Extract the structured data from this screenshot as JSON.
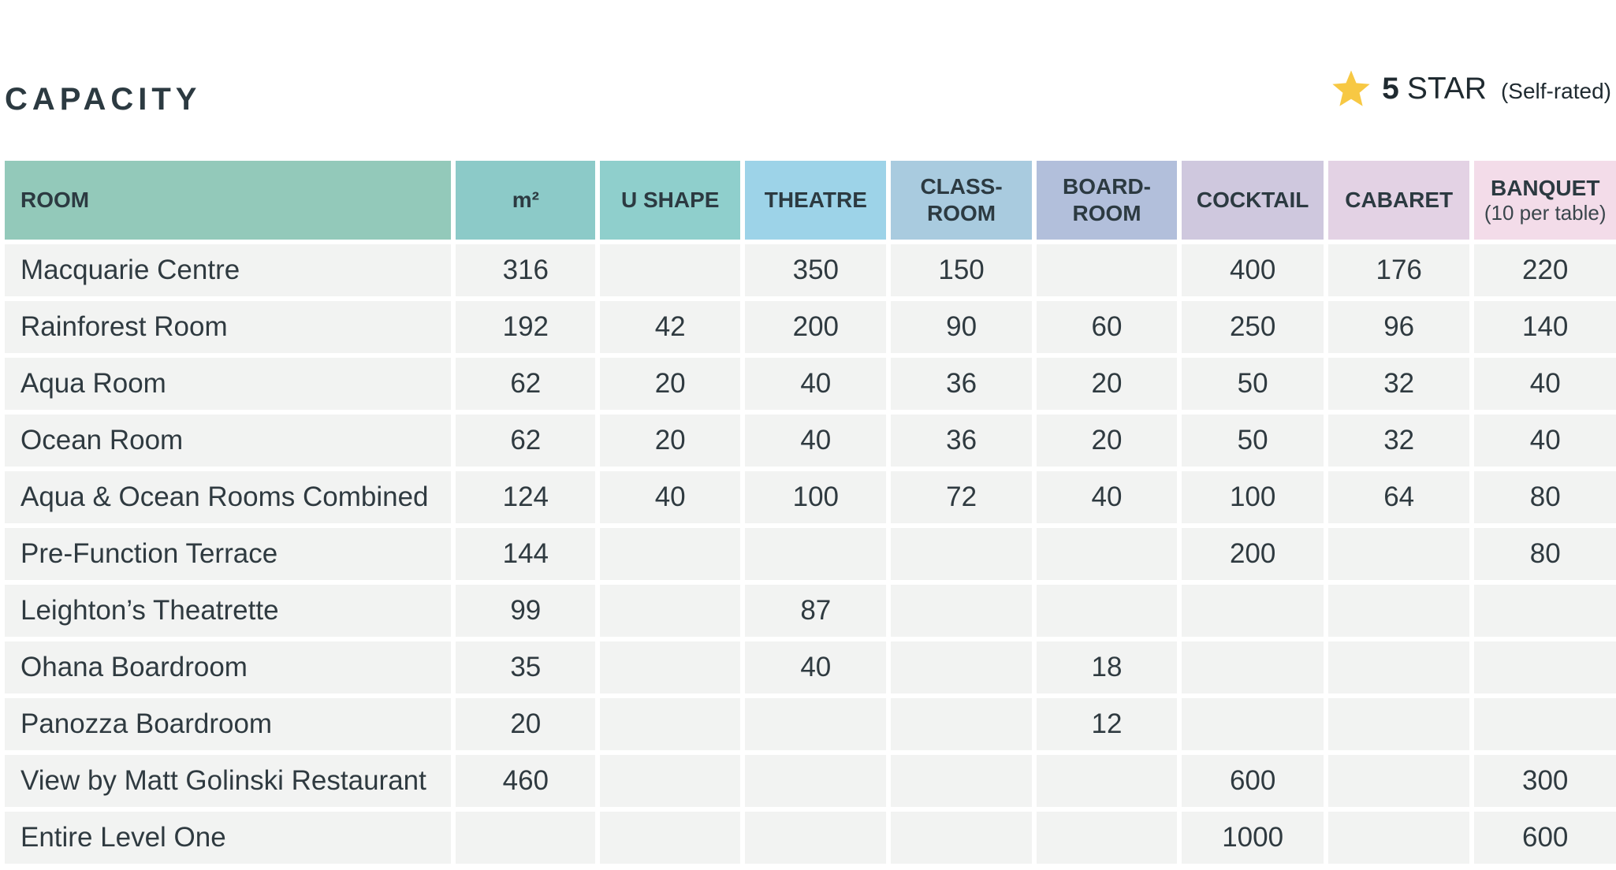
{
  "title": "CAPACITY",
  "rating": {
    "icon": "star-icon",
    "icon_color": "#f7c843",
    "stars": "5",
    "label": "STAR",
    "note": "(Self-rated)"
  },
  "columns": [
    {
      "label": "ROOM",
      "sub": "",
      "color": "#93c9ba"
    },
    {
      "label": "m²",
      "sub": "",
      "color": "#8ccac8"
    },
    {
      "label": "U SHAPE",
      "sub": "",
      "color": "#8fcfcc"
    },
    {
      "label": "THEATRE",
      "sub": "",
      "color": "#9dd3e8"
    },
    {
      "label": "CLASS-\nROOM",
      "sub": "",
      "color": "#a9cbdf"
    },
    {
      "label": "BOARD-\nROOM",
      "sub": "",
      "color": "#b2bfdb"
    },
    {
      "label": "COCKTAIL",
      "sub": "",
      "color": "#cfc8de"
    },
    {
      "label": "CABARET",
      "sub": "",
      "color": "#e3d2e4"
    },
    {
      "label": "BANQUET",
      "sub": "(10 per table)",
      "color": "#f3dce9"
    }
  ],
  "rows": [
    [
      "Macquarie Centre",
      "316",
      "",
      "350",
      "150",
      "",
      "400",
      "176",
      "220"
    ],
    [
      "Rainforest Room",
      "192",
      "42",
      "200",
      "90",
      "60",
      "250",
      "96",
      "140"
    ],
    [
      "Aqua Room",
      "62",
      "20",
      "40",
      "36",
      "20",
      "50",
      "32",
      "40"
    ],
    [
      "Ocean Room",
      "62",
      "20",
      "40",
      "36",
      "20",
      "50",
      "32",
      "40"
    ],
    [
      "Aqua & Ocean Rooms Combined",
      "124",
      "40",
      "100",
      "72",
      "40",
      "100",
      "64",
      "80"
    ],
    [
      "Pre-Function Terrace",
      "144",
      "",
      "",
      "",
      "",
      "200",
      "",
      "80"
    ],
    [
      "Leighton’s Theatrette",
      "99",
      "",
      "87",
      "",
      "",
      "",
      "",
      ""
    ],
    [
      "Ohana Boardroom",
      "35",
      "",
      "40",
      "",
      "18",
      "",
      "",
      ""
    ],
    [
      "Panozza Boardroom",
      "20",
      "",
      "",
      "",
      "12",
      "",
      "",
      ""
    ],
    [
      "View by Matt Golinski Restaurant",
      "460",
      "",
      "",
      "",
      "",
      "600",
      "",
      "300"
    ],
    [
      "Entire Level One",
      "",
      "",
      "",
      "",
      "",
      "1000",
      "",
      "600"
    ]
  ]
}
